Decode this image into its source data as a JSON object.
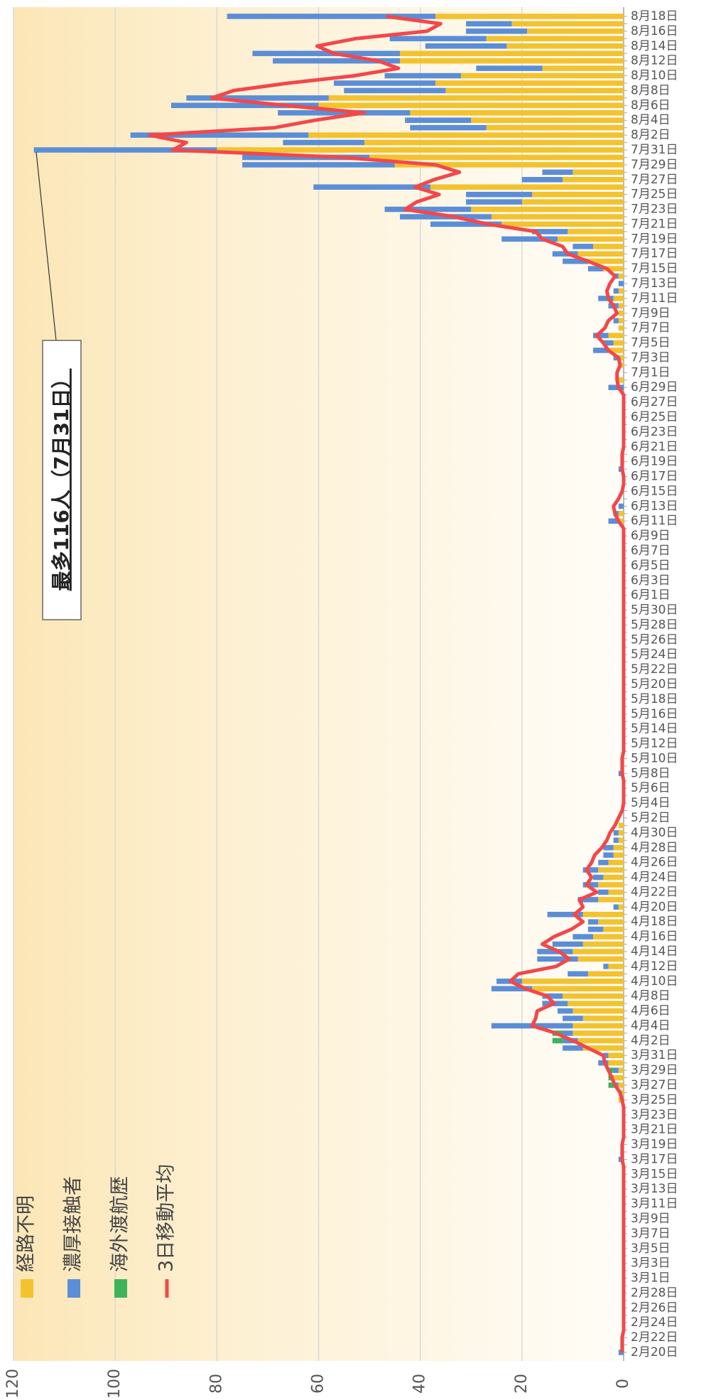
{
  "chart_data": {
    "type": "bar",
    "stacked": true,
    "horizontal": true,
    "categories": [
      "2月20日",
      null,
      "2月22日",
      null,
      "2月24日",
      null,
      "2月26日",
      null,
      "2月28日",
      null,
      "3月1日",
      null,
      "3月3日",
      null,
      "3月5日",
      null,
      "3月7日",
      null,
      "3月9日",
      null,
      "3月11日",
      null,
      "3月13日",
      null,
      "3月15日",
      null,
      "3月17日",
      null,
      "3月19日",
      null,
      "3月21日",
      null,
      "3月23日",
      null,
      "3月25日",
      null,
      "3月27日",
      null,
      "3月29日",
      null,
      "3月31日",
      null,
      "4月2日",
      null,
      "4月4日",
      null,
      "4月6日",
      null,
      "4月8日",
      null,
      "4月10日",
      null,
      "4月12日",
      null,
      "4月14日",
      null,
      "4月16日",
      null,
      "4月18日",
      null,
      "4月20日",
      null,
      "4月22日",
      null,
      "4月24日",
      null,
      "4月26日",
      null,
      "4月28日",
      null,
      "4月30日",
      null,
      "5月2日",
      null,
      "5月4日",
      null,
      "5月6日",
      null,
      "5月8日",
      null,
      "5月10日",
      null,
      "5月12日",
      null,
      "5月14日",
      null,
      "5月16日",
      null,
      "5月18日",
      null,
      "5月20日",
      null,
      "5月22日",
      null,
      "5月24日",
      null,
      "5月26日",
      null,
      "5月28日",
      null,
      "5月30日",
      null,
      "6月1日",
      null,
      "6月3日",
      null,
      "6月5日",
      null,
      "6月7日",
      null,
      "6月9日",
      null,
      "6月11日",
      null,
      "6月13日",
      null,
      "6月15日",
      null,
      "6月17日",
      null,
      "6月19日",
      null,
      "6月21日",
      null,
      "6月23日",
      null,
      "6月25日",
      null,
      "6月27日",
      null,
      "6月29日",
      null,
      "7月1日",
      null,
      "7月3日",
      null,
      "7月5日",
      null,
      "7月7日",
      null,
      "7月9日",
      null,
      "7月11日",
      null,
      "7月13日",
      null,
      "7月15日",
      null,
      "7月17日",
      null,
      "7月19日",
      null,
      "7月21日",
      null,
      "7月23日",
      null,
      "7月25日",
      null,
      "7月27日",
      null,
      "7月29日",
      null,
      "7月31日",
      null,
      "8月2日",
      null,
      "8月4日",
      null,
      "8月6日",
      null,
      "8月8日",
      null,
      "8月10日",
      null,
      "8月12日",
      null,
      "8月14日",
      null,
      "8月16日",
      null,
      "8月18日"
    ],
    "series": [
      {
        "name": "経路不明",
        "color": "#f3c22f",
        "values": [
          0,
          0,
          0,
          0,
          0,
          0,
          0,
          0,
          0,
          0,
          0,
          0,
          0,
          0,
          0,
          0,
          0,
          0,
          0,
          0,
          0,
          0,
          0,
          0,
          0,
          0,
          0,
          0,
          0,
          0,
          0,
          0,
          0,
          0,
          1,
          1,
          1,
          2,
          1,
          3,
          3,
          8,
          9,
          10,
          10,
          8,
          10,
          11,
          12,
          18,
          20,
          7,
          3,
          9,
          10,
          8,
          6,
          4,
          5,
          8,
          1,
          5,
          3,
          5,
          4,
          5,
          3,
          2,
          2,
          1,
          1,
          1,
          0,
          0,
          0,
          0,
          0,
          0,
          0,
          0,
          0,
          0,
          0,
          0,
          0,
          0,
          0,
          0,
          0,
          0,
          0,
          0,
          0,
          0,
          0,
          0,
          0,
          0,
          0,
          0,
          0,
          0,
          0,
          0,
          0,
          0,
          0,
          0,
          0,
          0,
          0,
          0,
          1,
          1,
          0,
          0,
          0,
          0,
          0,
          0,
          0,
          0,
          0,
          0,
          0,
          0,
          0,
          0,
          0,
          0,
          0,
          1,
          0,
          1,
          1,
          3,
          2,
          3,
          1,
          1,
          1,
          1,
          2,
          1,
          0,
          1,
          4,
          7,
          9,
          6,
          13,
          11,
          24,
          26,
          30,
          20,
          18,
          38,
          12,
          10,
          45,
          50,
          80,
          51,
          62,
          27,
          30,
          42,
          60,
          58,
          35,
          37,
          32,
          16,
          44,
          44,
          23,
          27,
          19,
          22,
          37
        ]
      },
      {
        "name": "濃厚接触者",
        "color": "#5b8ed6",
        "values": [
          1,
          0,
          0,
          0,
          0,
          0,
          0,
          0,
          0,
          0,
          0,
          0,
          0,
          0,
          0,
          0,
          0,
          0,
          0,
          0,
          0,
          0,
          0,
          0,
          0,
          0,
          1,
          0,
          0,
          0,
          0,
          0,
          0,
          0,
          0,
          0,
          1,
          0,
          1,
          2,
          1,
          4,
          3,
          2,
          16,
          4,
          3,
          5,
          4,
          8,
          5,
          4,
          1,
          8,
          7,
          6,
          4,
          3,
          2,
          7,
          1,
          4,
          2,
          3,
          2,
          3,
          2,
          2,
          2,
          1,
          1,
          0,
          0,
          0,
          0,
          0,
          0,
          0,
          1,
          0,
          0,
          0,
          0,
          0,
          0,
          0,
          0,
          0,
          0,
          0,
          0,
          0,
          0,
          0,
          0,
          0,
          0,
          0,
          0,
          0,
          0,
          0,
          0,
          0,
          0,
          0,
          0,
          0,
          0,
          0,
          0,
          0,
          2,
          1,
          1,
          0,
          0,
          0,
          0,
          1,
          0,
          0,
          0,
          0,
          0,
          0,
          0,
          0,
          0,
          0,
          3,
          0,
          0,
          0,
          1,
          3,
          2,
          3,
          0,
          1,
          0,
          2,
          3,
          1,
          1,
          1,
          3,
          5,
          5,
          4,
          11,
          7,
          14,
          18,
          17,
          11,
          13,
          23,
          8,
          6,
          30,
          25,
          36,
          16,
          35,
          15,
          13,
          26,
          29,
          28,
          20,
          20,
          15,
          13,
          25,
          29,
          16,
          19,
          12,
          9,
          41
        ]
      },
      {
        "name": "海外渡航歴",
        "color": "#3db35a",
        "values": [
          0,
          0,
          0,
          0,
          0,
          0,
          0,
          0,
          0,
          0,
          0,
          0,
          0,
          0,
          0,
          0,
          0,
          0,
          0,
          0,
          0,
          0,
          0,
          0,
          0,
          0,
          0,
          0,
          0,
          0,
          0,
          0,
          0,
          0,
          0,
          0,
          1,
          1,
          1,
          0,
          0,
          0,
          2,
          2,
          0,
          0,
          0,
          0,
          0,
          0,
          0,
          0,
          0,
          0,
          0,
          0,
          0,
          0,
          0,
          0,
          0,
          0,
          0,
          0,
          0,
          0,
          0,
          0,
          0,
          0,
          0,
          0,
          0,
          0,
          0,
          0,
          0,
          0,
          0,
          0,
          0,
          0,
          0,
          0,
          0,
          0,
          0,
          0,
          0,
          0,
          0,
          0,
          0,
          0,
          0,
          0,
          0,
          0,
          0,
          0,
          0,
          0,
          0,
          0,
          0,
          0,
          0,
          0,
          0,
          0,
          0,
          0,
          0,
          0,
          0,
          0,
          0,
          0,
          0,
          0,
          0,
          0,
          0,
          0,
          0,
          0,
          0,
          0,
          0,
          0,
          0,
          0,
          0,
          0,
          0,
          0,
          0,
          0,
          0,
          0,
          0,
          0,
          0,
          0,
          0,
          0,
          0,
          0,
          0,
          0,
          0,
          0,
          0,
          0,
          0,
          0,
          0,
          0,
          0,
          0,
          0,
          0,
          0,
          0,
          0,
          0,
          0,
          0,
          0,
          0,
          0,
          0,
          0,
          0,
          0,
          0,
          0,
          0,
          0,
          0,
          0
        ]
      },
      {
        "name": "3日移動平均",
        "color": "#f2484b",
        "type": "line",
        "values": [
          0.3,
          0.3,
          0.3,
          0,
          0,
          0,
          0,
          0,
          0,
          0,
          0,
          0,
          0,
          0,
          0,
          0,
          0,
          0,
          0,
          0,
          0,
          0,
          0,
          0,
          0,
          0,
          0.3,
          0.3,
          0.3,
          0,
          0,
          0,
          0,
          0,
          0.3,
          0.7,
          1.7,
          2.3,
          3,
          3.7,
          4,
          7,
          10,
          13.3,
          18,
          17.3,
          17,
          13.7,
          15,
          19.3,
          22.3,
          20.7,
          13.3,
          10.7,
          12.7,
          16,
          13.7,
          10.3,
          8,
          9.7,
          8,
          8.7,
          5.3,
          7.3,
          6.3,
          7.3,
          6.3,
          5.7,
          4.3,
          3.3,
          2.7,
          1.7,
          1,
          0.3,
          0,
          0,
          0,
          0,
          0.3,
          0.3,
          0.3,
          0,
          0,
          0,
          0,
          0,
          0,
          0,
          0,
          0,
          0,
          0,
          0,
          0,
          0,
          0,
          0,
          0,
          0,
          0,
          0,
          0,
          0,
          0,
          0,
          0,
          0,
          0,
          0,
          0,
          0,
          0,
          1,
          1.7,
          2,
          1,
          0.3,
          0,
          0,
          0.3,
          0.3,
          0.3,
          0,
          0,
          0,
          0,
          0,
          0,
          0,
          0,
          1,
          1.3,
          1.3,
          0.7,
          1,
          3,
          4,
          5.3,
          3.7,
          3,
          1.3,
          2,
          3,
          3.3,
          2.7,
          1.7,
          3.3,
          7,
          11,
          12,
          16,
          17.3,
          26.7,
          33.3,
          43,
          40.7,
          36.3,
          41,
          37.3,
          32.3,
          37,
          55.3,
          88.7,
          86,
          93.3,
          68.7,
          60.7,
          51,
          66.7,
          81,
          76.7,
          66,
          53,
          44.3,
          48.3,
          57,
          60.3,
          52.7,
          38.7,
          36,
          46.7
        ]
      }
    ],
    "xlim": [
      0,
      120
    ],
    "xticks": [
      0,
      20,
      40,
      60,
      80,
      100,
      120
    ],
    "grid": true,
    "legend": "bottom-left",
    "annotation": "最多116人（7月31日）"
  }
}
